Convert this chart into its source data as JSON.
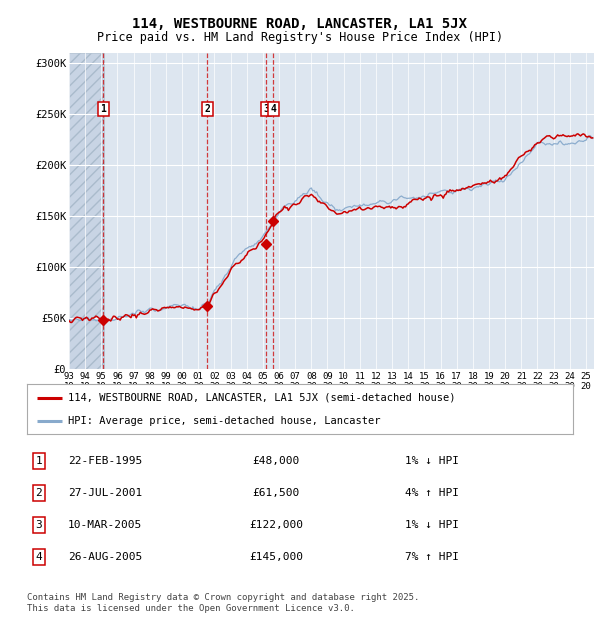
{
  "title": "114, WESTBOURNE ROAD, LANCASTER, LA1 5JX",
  "subtitle": "Price paid vs. HM Land Registry's House Price Index (HPI)",
  "ylabel_ticks": [
    "£0",
    "£50K",
    "£100K",
    "£150K",
    "£200K",
    "£250K",
    "£300K"
  ],
  "ytick_values": [
    0,
    50000,
    100000,
    150000,
    200000,
    250000,
    300000
  ],
  "ylim": [
    0,
    310000
  ],
  "xlim_start": 1993.0,
  "xlim_end": 2025.5,
  "hatch_end_year": 1995.15,
  "sale_color": "#cc0000",
  "hpi_color": "#88aacc",
  "sale_label": "114, WESTBOURNE ROAD, LANCASTER, LA1 5JX (semi-detached house)",
  "hpi_label": "HPI: Average price, semi-detached house, Lancaster",
  "transactions": [
    {
      "num": 1,
      "date": "22-FEB-1995",
      "price": 48000,
      "year": 1995.13,
      "hpi_pct": "1%",
      "hpi_dir": "↓"
    },
    {
      "num": 2,
      "date": "27-JUL-2001",
      "price": 61500,
      "year": 2001.56,
      "hpi_pct": "4%",
      "hpi_dir": "↑"
    },
    {
      "num": 3,
      "date": "10-MAR-2005",
      "price": 122000,
      "year": 2005.19,
      "hpi_pct": "1%",
      "hpi_dir": "↓"
    },
    {
      "num": 4,
      "date": "26-AUG-2005",
      "price": 145000,
      "year": 2005.65,
      "hpi_pct": "7%",
      "hpi_dir": "↑"
    }
  ],
  "footnote": "Contains HM Land Registry data © Crown copyright and database right 2025.\nThis data is licensed under the Open Government Licence v3.0.",
  "background_color": "#ffffff",
  "plot_bg_color": "#dde6f0",
  "hatch_bg_color": "#c8d4e4"
}
